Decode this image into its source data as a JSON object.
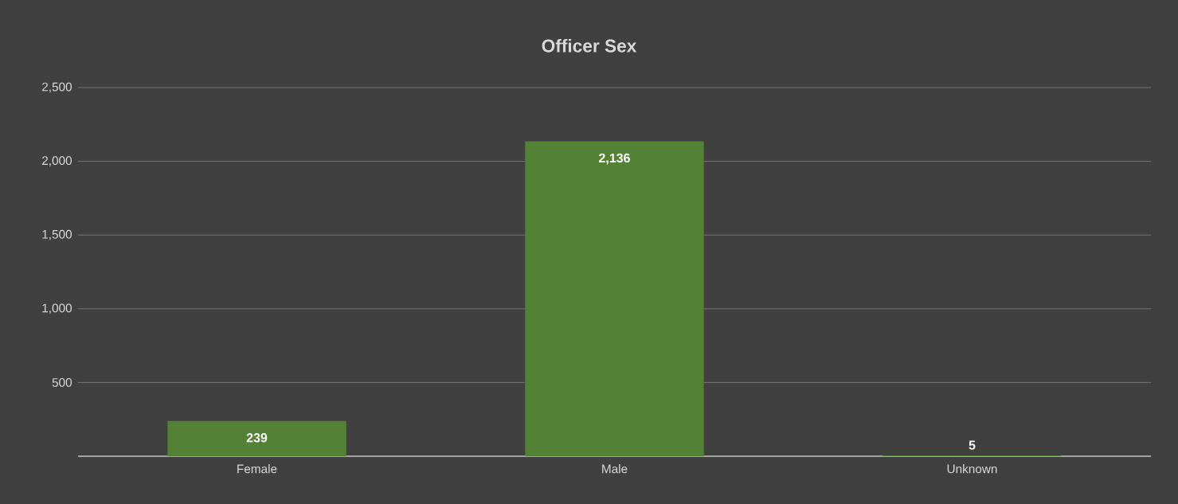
{
  "chart_data": {
    "type": "bar",
    "title": "Officer Sex",
    "categories": [
      "Female",
      "Male",
      "Unknown"
    ],
    "values": [
      239,
      2136,
      5
    ],
    "value_labels": [
      "239",
      "2,136",
      "5"
    ],
    "color": "#538135",
    "ylim": [
      0,
      2500
    ],
    "yticks": [
      {
        "value": 0,
        "label": null
      },
      {
        "value": 500,
        "label": "500"
      },
      {
        "value": 1000,
        "label": "1,000"
      },
      {
        "value": 1500,
        "label": "1,500"
      },
      {
        "value": 2000,
        "label": "2,000"
      },
      {
        "value": 2500,
        "label": "2,500"
      }
    ],
    "grid": "y"
  }
}
